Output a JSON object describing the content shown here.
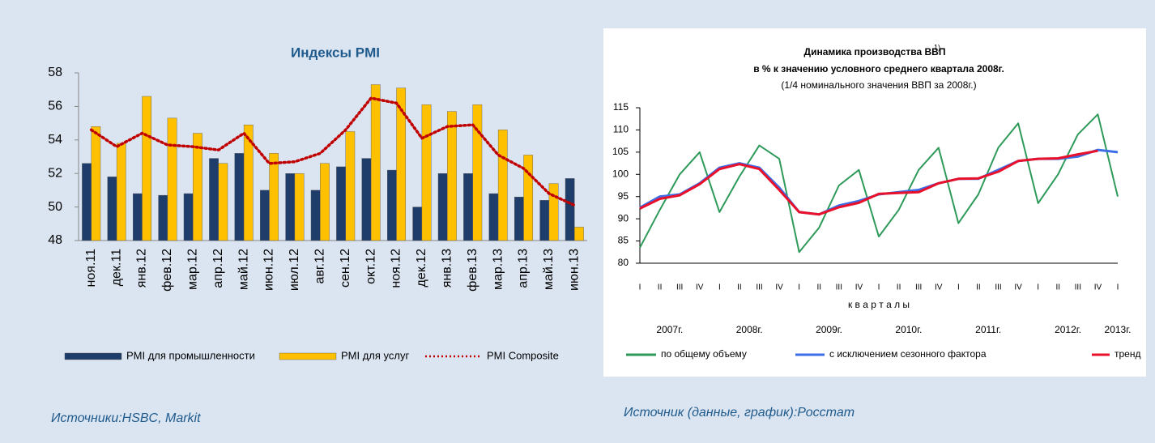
{
  "chart_data": [
    {
      "type": "bar",
      "title": "Индексы PMI",
      "categories": [
        "ноя.11",
        "дек.11",
        "янв.12",
        "фев.12",
        "мар.12",
        "апр.12",
        "май.12",
        "июн.12",
        "июл.12",
        "авг.12",
        "сен.12",
        "окт.12",
        "ноя.12",
        "дек.12",
        "янв.13",
        "фев.13",
        "мар.13",
        "апр.13",
        "май.13",
        "июн.13"
      ],
      "series": [
        {
          "name": "PMI для промышленности",
          "type": "bar",
          "color": "#1f3d6b",
          "values": [
            52.6,
            51.8,
            50.8,
            50.7,
            50.8,
            52.9,
            53.2,
            51.0,
            52.0,
            51.0,
            52.4,
            52.9,
            52.2,
            50.0,
            52.0,
            52.0,
            50.8,
            50.6,
            50.4,
            51.7
          ]
        },
        {
          "name": "PMI для услуг",
          "type": "bar",
          "color": "#ffc000",
          "values": [
            54.8,
            53.8,
            56.6,
            55.3,
            54.4,
            52.6,
            54.9,
            53.2,
            52.0,
            52.6,
            54.5,
            57.3,
            57.1,
            56.1,
            55.7,
            56.1,
            54.6,
            53.1,
            51.4,
            48.8
          ]
        },
        {
          "name": "PMI Composite",
          "type": "line",
          "color": "#c00000",
          "values": [
            54.6,
            53.6,
            54.4,
            53.7,
            53.6,
            53.4,
            54.4,
            52.6,
            52.7,
            53.2,
            54.6,
            56.5,
            56.2,
            54.1,
            54.8,
            54.9,
            53.1,
            52.3,
            50.8,
            50.1
          ]
        }
      ],
      "ylim": [
        48,
        58
      ],
      "yticks": [
        48,
        50,
        52,
        54,
        56,
        58
      ],
      "grid": false,
      "legend": "bottom",
      "source": "Источники:HSBC, Markit"
    },
    {
      "type": "line",
      "title": "Динамика производства ВВП",
      "title_note": "1)",
      "subtitle": "в % к значению условного среднего квартала 2008г.",
      "subtitle2": "(1/4 номинального значения ВВП за 2008г.)",
      "x_label": "к в а р т а л ы",
      "categories": [
        "I",
        "II",
        "III",
        "IV",
        "I",
        "II",
        "III",
        "IV",
        "I",
        "II",
        "III",
        "IV",
        "I",
        "II",
        "III",
        "IV",
        "I",
        "II",
        "III",
        "IV",
        "I",
        "II",
        "III",
        "IV",
        "I"
      ],
      "years": [
        "2007г.",
        "2008г.",
        "2009г.",
        "2010г.",
        "2011г.",
        "2012г.",
        "2013г."
      ],
      "series": [
        {
          "name": "по общему объему",
          "color": "#2e9a5a",
          "values": [
            83.5,
            92,
            100,
            105,
            91.5,
            99.5,
            106.5,
            103.5,
            82.5,
            88,
            97.5,
            101,
            86,
            92,
            101,
            106,
            89,
            95.5,
            106,
            111.5,
            93.5,
            100,
            109,
            113.5,
            95
          ]
        },
        {
          "name": "с исключением сезонного фактора",
          "color": "#3d6ee8",
          "values": [
            92.5,
            95,
            95.5,
            98,
            101.5,
            102.5,
            101.5,
            97,
            91.5,
            91,
            93,
            94,
            95.5,
            96,
            96.5,
            98,
            99,
            99,
            101,
            103,
            103.5,
            103.5,
            104,
            105.5,
            105
          ]
        },
        {
          "name": "тренд",
          "color": "#e8102a",
          "values": [
            92.3,
            94.5,
            95.3,
            97.8,
            101.2,
            102.3,
            101.2,
            96.5,
            91.5,
            91,
            92.6,
            93.6,
            95.6,
            95.8,
            96,
            98,
            99,
            99.1,
            100.6,
            103,
            103.5,
            103.6,
            104.5,
            105.3,
            null
          ]
        }
      ],
      "ylim": [
        80,
        115
      ],
      "yticks": [
        80,
        85,
        90,
        95,
        100,
        105,
        110,
        115
      ],
      "grid": false,
      "legend": "bottom",
      "source": "Источник (данные, график):Росстат"
    }
  ]
}
